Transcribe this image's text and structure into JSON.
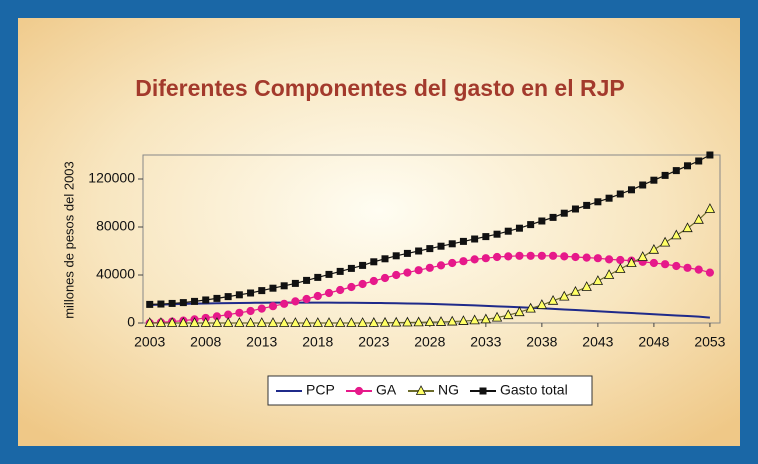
{
  "chart_data": {
    "type": "line",
    "title": "Diferentes Componentes del gasto en el RJP",
    "y_label": "millones de pesos del 2003",
    "x": [
      2003,
      2004,
      2005,
      2006,
      2007,
      2008,
      2009,
      2010,
      2011,
      2012,
      2013,
      2014,
      2015,
      2016,
      2017,
      2018,
      2019,
      2020,
      2021,
      2022,
      2023,
      2024,
      2025,
      2026,
      2027,
      2028,
      2029,
      2030,
      2031,
      2032,
      2033,
      2034,
      2035,
      2036,
      2037,
      2038,
      2039,
      2040,
      2041,
      2042,
      2043,
      2044,
      2045,
      2046,
      2047,
      2048,
      2049,
      2050,
      2051,
      2052,
      2053
    ],
    "xlim": [
      2002.4,
      2053.9
    ],
    "xticks": [
      2003,
      2008,
      2013,
      2018,
      2023,
      2028,
      2033,
      2038,
      2043,
      2048,
      2053
    ],
    "ylim": [
      0,
      140000
    ],
    "yticks": [
      0,
      40000,
      80000,
      120000
    ],
    "legend": "bottom",
    "series": [
      {
        "name": "PCP",
        "color": "#1f2a8a",
        "marker": "none",
        "values": [
          15000,
          15300,
          15600,
          15900,
          16100,
          16300,
          16500,
          16600,
          16700,
          16800,
          16900,
          17000,
          17000,
          17000,
          17000,
          17000,
          17000,
          16900,
          16900,
          16800,
          16700,
          16600,
          16500,
          16300,
          16100,
          15900,
          15600,
          15300,
          15000,
          14700,
          14300,
          13900,
          13500,
          13100,
          12700,
          12300,
          11800,
          11300,
          10800,
          10300,
          9800,
          9300,
          8800,
          8300,
          7800,
          7300,
          6800,
          6300,
          5800,
          5300,
          4500
        ]
      },
      {
        "name": "GA",
        "color": "#e6198a",
        "marker": "circle",
        "values": [
          0,
          500,
          1200,
          2000,
          3000,
          4200,
          5500,
          7000,
          8500,
          10000,
          12000,
          14000,
          16000,
          18000,
          20000,
          22500,
          25000,
          27500,
          30000,
          32500,
          35000,
          37500,
          40000,
          42000,
          44000,
          46000,
          48000,
          50000,
          51500,
          53000,
          54000,
          55000,
          55500,
          56000,
          56000,
          56000,
          56000,
          55500,
          55000,
          54500,
          54000,
          53000,
          52500,
          52000,
          51000,
          50000,
          49000,
          47500,
          46000,
          44500,
          42000
        ]
      },
      {
        "name": "NG",
        "color": "#ffff66",
        "marker": "triangle",
        "values": [
          0,
          0,
          0,
          0,
          0,
          0,
          0,
          0,
          0,
          0,
          0,
          0,
          0,
          0,
          0,
          0,
          0,
          0,
          0,
          0,
          100,
          200,
          300,
          400,
          500,
          700,
          900,
          1200,
          1600,
          2200,
          3000,
          4500,
          6500,
          9000,
          12000,
          15000,
          18500,
          22000,
          26000,
          30000,
          35000,
          40000,
          45000,
          50000,
          55000,
          61000,
          67000,
          73000,
          79000,
          86000,
          95000
        ]
      },
      {
        "name": "Gasto total",
        "color": "#111111",
        "marker": "square",
        "values": [
          15500,
          15800,
          16300,
          17000,
          18000,
          19200,
          20500,
          22000,
          23500,
          25000,
          27000,
          29000,
          31000,
          33000,
          35500,
          38000,
          40500,
          43000,
          45500,
          48000,
          51000,
          53500,
          56000,
          58000,
          60000,
          62000,
          64000,
          66000,
          68000,
          70000,
          72000,
          74000,
          76500,
          79000,
          82000,
          85000,
          88000,
          91500,
          95000,
          98000,
          101000,
          104000,
          107500,
          111000,
          115000,
          119000,
          123000,
          127000,
          131000,
          135000,
          140000
        ]
      }
    ]
  }
}
